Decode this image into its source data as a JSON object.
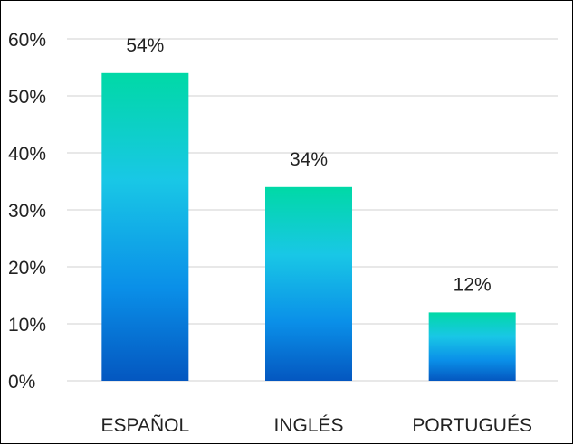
{
  "chart_data": {
    "type": "bar",
    "categories": [
      "ESPAÑOL",
      "INGLÉS",
      "PORTUGUÉS"
    ],
    "values": [
      54,
      34,
      12
    ],
    "data_labels": [
      "54%",
      "34%",
      "12%"
    ],
    "y_tick_labels": [
      "0%",
      "10%",
      "20%",
      "30%",
      "40%",
      "50%",
      "60%"
    ],
    "ylim": [
      0,
      60
    ],
    "y_step": 10,
    "grid": true,
    "legend": "none",
    "colors": {
      "bar_top": "#00d9a6",
      "bar_mid": "#19c7e6",
      "bar_low": "#0a8fe8",
      "bar_bottom": "#0457c0",
      "grid": "#d9d9d9",
      "text": "#222222"
    }
  }
}
